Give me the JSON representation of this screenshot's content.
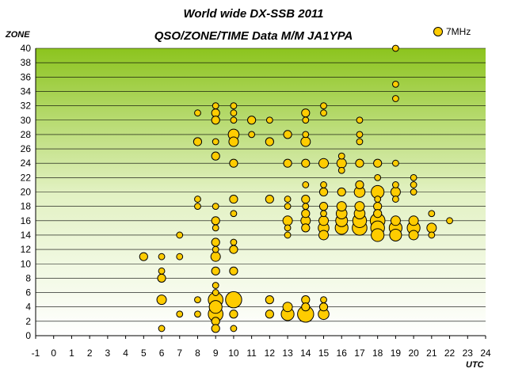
{
  "chart_data": {
    "type": "scatter",
    "title": "World wide DX-SSB 2011",
    "subtitle": "QSO/ZONE/TIME Data M/M JA1YPA",
    "xlabel": "UTC",
    "ylabel": "ZONE",
    "xlim": [
      -1,
      24
    ],
    "ylim": [
      0,
      40
    ],
    "xticks": [
      -1,
      0,
      1,
      2,
      3,
      4,
      5,
      6,
      7,
      8,
      9,
      10,
      11,
      12,
      13,
      14,
      15,
      16,
      17,
      18,
      19,
      20,
      21,
      22,
      23,
      24
    ],
    "yticks": [
      0,
      2,
      4,
      6,
      8,
      10,
      12,
      14,
      16,
      18,
      20,
      22,
      24,
      26,
      28,
      30,
      32,
      34,
      36,
      38,
      40
    ],
    "grid": "horizontal",
    "legend_position": "top-right",
    "colors": {
      "marker": "#FFCC00",
      "marker_edge": "#000000",
      "bg_top": "#8CC41E",
      "bg_bottom": "#FFFFFF"
    },
    "series": [
      {
        "name": "7MHz",
        "points": [
          {
            "x": 5,
            "y": 11,
            "s": 1
          },
          {
            "x": 6,
            "y": 11,
            "s": 0.5
          },
          {
            "x": 6,
            "y": 9,
            "s": 0.5
          },
          {
            "x": 6,
            "y": 8,
            "s": 1
          },
          {
            "x": 6,
            "y": 5,
            "s": 1.5
          },
          {
            "x": 6,
            "y": 1,
            "s": 0.5
          },
          {
            "x": 7,
            "y": 14,
            "s": 0.5
          },
          {
            "x": 7,
            "y": 11,
            "s": 0.5
          },
          {
            "x": 7,
            "y": 3,
            "s": 0.5
          },
          {
            "x": 8,
            "y": 31,
            "s": 0.5
          },
          {
            "x": 8,
            "y": 27,
            "s": 1
          },
          {
            "x": 8,
            "y": 19,
            "s": 0.5
          },
          {
            "x": 8,
            "y": 18,
            "s": 0.5
          },
          {
            "x": 8,
            "y": 5,
            "s": 0.5
          },
          {
            "x": 8,
            "y": 3,
            "s": 0.5
          },
          {
            "x": 9,
            "y": 32,
            "s": 0.5
          },
          {
            "x": 9,
            "y": 31,
            "s": 1
          },
          {
            "x": 9,
            "y": 30,
            "s": 1
          },
          {
            "x": 9,
            "y": 27,
            "s": 0.5
          },
          {
            "x": 9,
            "y": 25,
            "s": 1
          },
          {
            "x": 9,
            "y": 18,
            "s": 0.5
          },
          {
            "x": 9,
            "y": 16,
            "s": 1
          },
          {
            "x": 9,
            "y": 15,
            "s": 0.5
          },
          {
            "x": 9,
            "y": 13,
            "s": 1
          },
          {
            "x": 9,
            "y": 12,
            "s": 0.5
          },
          {
            "x": 9,
            "y": 11,
            "s": 1.5
          },
          {
            "x": 9,
            "y": 9,
            "s": 1
          },
          {
            "x": 9,
            "y": 7,
            "s": 0.5
          },
          {
            "x": 9,
            "y": 6,
            "s": 0.5
          },
          {
            "x": 9,
            "y": 5,
            "s": 4
          },
          {
            "x": 9,
            "y": 4,
            "s": 3
          },
          {
            "x": 9,
            "y": 3,
            "s": 4
          },
          {
            "x": 9,
            "y": 2,
            "s": 1
          },
          {
            "x": 9,
            "y": 1,
            "s": 1
          },
          {
            "x": 10,
            "y": 32,
            "s": 0.5
          },
          {
            "x": 10,
            "y": 31,
            "s": 0.5
          },
          {
            "x": 10,
            "y": 30,
            "s": 0.5
          },
          {
            "x": 10,
            "y": 28,
            "s": 2
          },
          {
            "x": 10,
            "y": 27,
            "s": 1.5
          },
          {
            "x": 10,
            "y": 24,
            "s": 1
          },
          {
            "x": 10,
            "y": 19,
            "s": 1
          },
          {
            "x": 10,
            "y": 17,
            "s": 0.5
          },
          {
            "x": 10,
            "y": 13,
            "s": 0.5
          },
          {
            "x": 10,
            "y": 12,
            "s": 1
          },
          {
            "x": 10,
            "y": 9,
            "s": 1
          },
          {
            "x": 10,
            "y": 5,
            "s": 5
          },
          {
            "x": 10,
            "y": 3,
            "s": 1
          },
          {
            "x": 10,
            "y": 1,
            "s": 0.5
          },
          {
            "x": 11,
            "y": 30,
            "s": 1
          },
          {
            "x": 11,
            "y": 28,
            "s": 0.5
          },
          {
            "x": 12,
            "y": 30,
            "s": 0.5
          },
          {
            "x": 12,
            "y": 27,
            "s": 1
          },
          {
            "x": 12,
            "y": 19,
            "s": 1
          },
          {
            "x": 12,
            "y": 5,
            "s": 1
          },
          {
            "x": 12,
            "y": 3,
            "s": 1
          },
          {
            "x": 13,
            "y": 28,
            "s": 1
          },
          {
            "x": 13,
            "y": 24,
            "s": 1
          },
          {
            "x": 13,
            "y": 19,
            "s": 0.5
          },
          {
            "x": 13,
            "y": 18,
            "s": 0.5
          },
          {
            "x": 13,
            "y": 16,
            "s": 1.5
          },
          {
            "x": 13,
            "y": 15,
            "s": 0.5
          },
          {
            "x": 13,
            "y": 14,
            "s": 0.5
          },
          {
            "x": 13,
            "y": 4,
            "s": 1.5
          },
          {
            "x": 13,
            "y": 3,
            "s": 3
          },
          {
            "x": 14,
            "y": 31,
            "s": 1
          },
          {
            "x": 14,
            "y": 30,
            "s": 0.5
          },
          {
            "x": 14,
            "y": 28,
            "s": 0.5
          },
          {
            "x": 14,
            "y": 27,
            "s": 1.5
          },
          {
            "x": 14,
            "y": 24,
            "s": 1
          },
          {
            "x": 14,
            "y": 21,
            "s": 0.5
          },
          {
            "x": 14,
            "y": 19,
            "s": 1
          },
          {
            "x": 14,
            "y": 18,
            "s": 0.5
          },
          {
            "x": 14,
            "y": 17,
            "s": 1
          },
          {
            "x": 14,
            "y": 16,
            "s": 1.5
          },
          {
            "x": 14,
            "y": 15,
            "s": 1
          },
          {
            "x": 14,
            "y": 5,
            "s": 1
          },
          {
            "x": 14,
            "y": 4,
            "s": 1
          },
          {
            "x": 14,
            "y": 3,
            "s": 5
          },
          {
            "x": 15,
            "y": 32,
            "s": 0.5
          },
          {
            "x": 15,
            "y": 31,
            "s": 0.5
          },
          {
            "x": 15,
            "y": 24,
            "s": 1.5
          },
          {
            "x": 15,
            "y": 21,
            "s": 0.5
          },
          {
            "x": 15,
            "y": 20,
            "s": 1
          },
          {
            "x": 15,
            "y": 18,
            "s": 1
          },
          {
            "x": 15,
            "y": 17,
            "s": 0.5
          },
          {
            "x": 15,
            "y": 16,
            "s": 1.5
          },
          {
            "x": 15,
            "y": 15,
            "s": 2
          },
          {
            "x": 15,
            "y": 14,
            "s": 1.5
          },
          {
            "x": 15,
            "y": 5,
            "s": 0.5
          },
          {
            "x": 15,
            "y": 4,
            "s": 1
          },
          {
            "x": 15,
            "y": 3,
            "s": 2
          },
          {
            "x": 16,
            "y": 25,
            "s": 0.5
          },
          {
            "x": 16,
            "y": 24,
            "s": 1.5
          },
          {
            "x": 16,
            "y": 23,
            "s": 0.5
          },
          {
            "x": 16,
            "y": 20,
            "s": 1
          },
          {
            "x": 16,
            "y": 18,
            "s": 1.5
          },
          {
            "x": 16,
            "y": 17,
            "s": 2
          },
          {
            "x": 16,
            "y": 16,
            "s": 2.5
          },
          {
            "x": 16,
            "y": 15,
            "s": 3
          },
          {
            "x": 17,
            "y": 30,
            "s": 0.5
          },
          {
            "x": 17,
            "y": 28,
            "s": 0.5
          },
          {
            "x": 17,
            "y": 27,
            "s": 0.5
          },
          {
            "x": 17,
            "y": 24,
            "s": 1
          },
          {
            "x": 17,
            "y": 21,
            "s": 1
          },
          {
            "x": 17,
            "y": 20,
            "s": 2
          },
          {
            "x": 17,
            "y": 18,
            "s": 1.5
          },
          {
            "x": 17,
            "y": 17,
            "s": 2
          },
          {
            "x": 17,
            "y": 16,
            "s": 3.5
          },
          {
            "x": 17,
            "y": 15,
            "s": 4
          },
          {
            "x": 18,
            "y": 24,
            "s": 1
          },
          {
            "x": 18,
            "y": 22,
            "s": 0.5
          },
          {
            "x": 18,
            "y": 20,
            "s": 3
          },
          {
            "x": 18,
            "y": 19,
            "s": 0.5
          },
          {
            "x": 18,
            "y": 18,
            "s": 1
          },
          {
            "x": 18,
            "y": 17,
            "s": 1
          },
          {
            "x": 18,
            "y": 16,
            "s": 4
          },
          {
            "x": 18,
            "y": 15,
            "s": 3.5
          },
          {
            "x": 18,
            "y": 14,
            "s": 3
          },
          {
            "x": 19,
            "y": 40,
            "s": 0.5
          },
          {
            "x": 19,
            "y": 35,
            "s": 0.5
          },
          {
            "x": 19,
            "y": 33,
            "s": 0.5
          },
          {
            "x": 19,
            "y": 24,
            "s": 0.5
          },
          {
            "x": 19,
            "y": 21,
            "s": 0.5
          },
          {
            "x": 19,
            "y": 20,
            "s": 1.5
          },
          {
            "x": 19,
            "y": 19,
            "s": 0.5
          },
          {
            "x": 19,
            "y": 16,
            "s": 1.5
          },
          {
            "x": 19,
            "y": 15,
            "s": 3
          },
          {
            "x": 19,
            "y": 14,
            "s": 2.5
          },
          {
            "x": 20,
            "y": 22,
            "s": 0.5
          },
          {
            "x": 20,
            "y": 21,
            "s": 0.5
          },
          {
            "x": 20,
            "y": 20,
            "s": 0.5
          },
          {
            "x": 20,
            "y": 16,
            "s": 1.5
          },
          {
            "x": 20,
            "y": 15,
            "s": 3
          },
          {
            "x": 20,
            "y": 14,
            "s": 1.5
          },
          {
            "x": 21,
            "y": 17,
            "s": 0.5
          },
          {
            "x": 21,
            "y": 15,
            "s": 1.5
          },
          {
            "x": 21,
            "y": 14,
            "s": 0.5
          },
          {
            "x": 22,
            "y": 16,
            "s": 0.5
          }
        ]
      }
    ]
  }
}
